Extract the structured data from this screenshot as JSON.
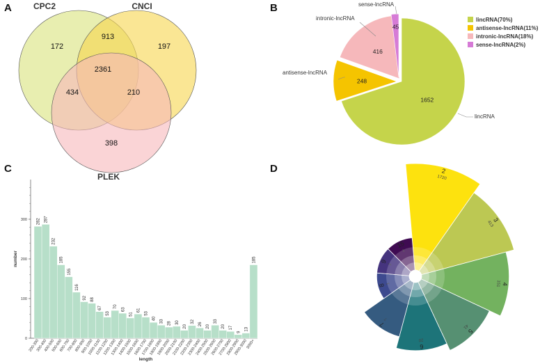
{
  "panels": {
    "a": "A",
    "b": "B",
    "c": "C",
    "d": "D"
  },
  "chart_data": [
    {
      "type": "venn",
      "sets": [
        {
          "name": "CPC2",
          "color": "#d9e27c"
        },
        {
          "name": "CNCI",
          "color": "#f7d54c"
        },
        {
          "name": "PLEK",
          "color": "#f6b8bb"
        }
      ],
      "regions": [
        {
          "sets": [
            "CPC2"
          ],
          "value": 172
        },
        {
          "sets": [
            "CNCI"
          ],
          "value": 197
        },
        {
          "sets": [
            "PLEK"
          ],
          "value": 398
        },
        {
          "sets": [
            "CPC2",
            "CNCI"
          ],
          "value": 913
        },
        {
          "sets": [
            "CPC2",
            "PLEK"
          ],
          "value": 434
        },
        {
          "sets": [
            "CNCI",
            "PLEK"
          ],
          "value": 210
        },
        {
          "sets": [
            "CPC2",
            "CNCI",
            "PLEK"
          ],
          "value": 2361
        }
      ]
    },
    {
      "type": "pie",
      "slices": [
        {
          "label": "lincRNA",
          "value": 1652,
          "color": "#c5d44b",
          "legend": "lincRNA(70%)"
        },
        {
          "label": "antisense-lncRNA",
          "value": 248,
          "color": "#f5c400",
          "legend": "antisense-lncRNA(11%)"
        },
        {
          "label": "intronic-lncRNA",
          "value": 416,
          "color": "#f6b8bb",
          "legend": "intronic-lncRNA(18%)"
        },
        {
          "label": "sense-lncRNA",
          "value": 45,
          "color": "#d67bd6",
          "legend": "sense-lncRNA(2%)"
        }
      ],
      "legend_position": "right"
    },
    {
      "type": "bar",
      "color": "#b7dfc9",
      "categories": [
        "200-300",
        "300-400",
        "400-500",
        "500-600",
        "600-700",
        "700-800",
        "800-900",
        "900-1000",
        "1000-1100",
        "1100-1200",
        "1200-1300",
        "1300-1400",
        "1400-1500",
        "1500-1600",
        "1600-1700",
        "1700-1800",
        "1800-1900",
        "1900-2000",
        "2000-2100",
        "2100-2200",
        "2200-2300",
        "2300-2400",
        "2400-2500",
        "2500-2600",
        "2600-2700",
        "2700-2800",
        "2800-2900",
        "2900-3000",
        "3000+"
      ],
      "values": [
        282,
        287,
        232,
        185,
        155,
        116,
        92,
        88,
        67,
        53,
        70,
        63,
        51,
        61,
        53,
        40,
        33,
        28,
        30,
        20,
        32,
        26,
        20,
        33,
        20,
        17,
        9,
        13,
        185
      ],
      "xlabel": "length",
      "ylabel": "number",
      "yticks": [
        0,
        100,
        200,
        300
      ],
      "ylim": [
        0,
        400
      ]
    },
    {
      "type": "rose",
      "sectors": [
        {
          "label": "2",
          "value": 1720,
          "color": "#fde20e"
        },
        {
          "label": "3",
          "value": 413,
          "color": "#bcc853"
        },
        {
          "label": "4",
          "value": 151,
          "color": "#73b25f"
        },
        {
          "label": "5",
          "value": 41,
          "color": "#569072"
        },
        {
          "label": "6",
          "value": 20,
          "color": "#1d7479"
        },
        {
          "label": "7",
          "value": 7,
          "color": "#355b80"
        },
        {
          "label": "8",
          "value": 1,
          "color": "#3d4a8f"
        },
        {
          "label": "9",
          "value": 1,
          "color": "#45347e"
        },
        {
          "label": "15",
          "value": 1,
          "color": "#3f0b52"
        }
      ]
    }
  ]
}
